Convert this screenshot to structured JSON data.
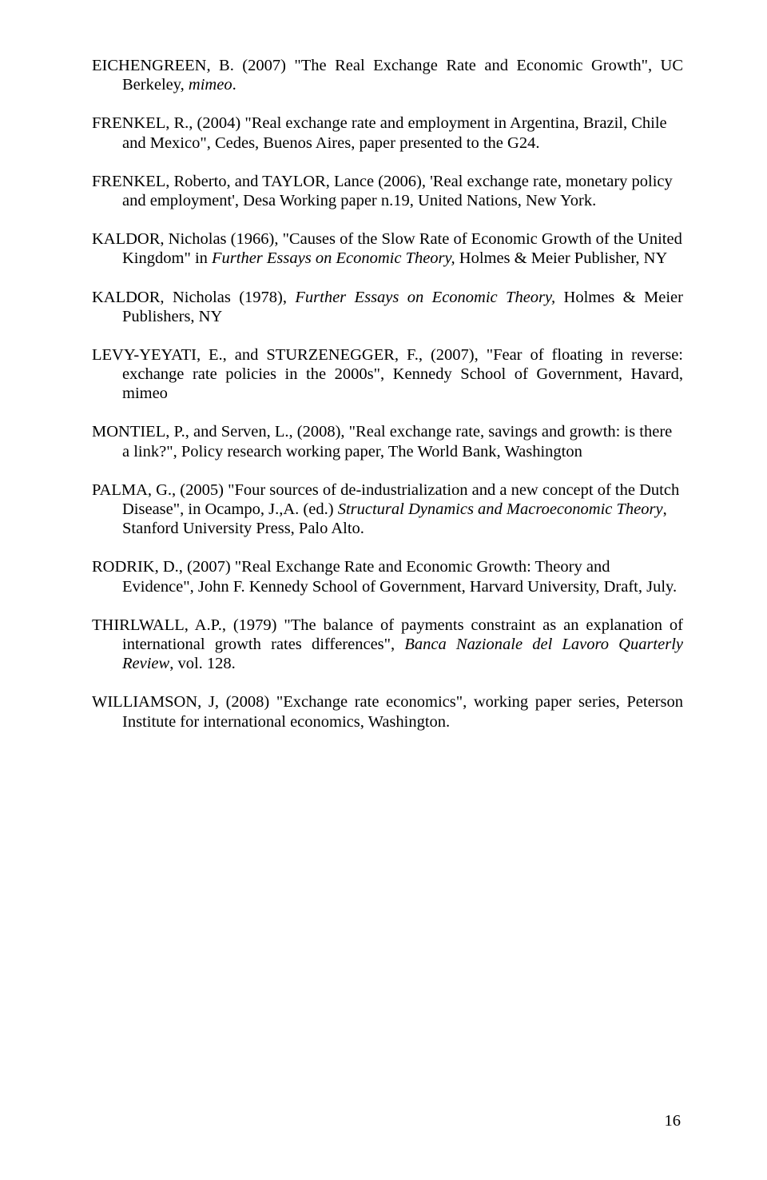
{
  "references": [
    {
      "parts": [
        {
          "text": "EICHENGREEN, B. (2007) \"The Real Exchange Rate and Economic Growth\", UC Berkeley, "
        },
        {
          "text": "mimeo",
          "italic": true
        },
        {
          "text": "."
        }
      ],
      "justify": true
    },
    {
      "parts": [
        {
          "text": "FRENKEL, R., (2004) \"Real exchange rate and employment in Argentina, Brazil, Chile and Mexico\", Cedes, Buenos Aires, paper presented to the G24."
        }
      ],
      "justify": false
    },
    {
      "parts": [
        {
          "text": "FRENKEL, Roberto, and TAYLOR, Lance (2006), 'Real exchange rate, monetary policy and employment', Desa Working paper n.19, United Nations, New York."
        }
      ],
      "justify": false
    },
    {
      "parts": [
        {
          "text": "KALDOR, Nicholas (1966), \"Causes of the Slow Rate of Economic Growth of the United Kingdom\" in "
        },
        {
          "text": "Further Essays on Economic Theory,",
          "italic": true
        },
        {
          "text": " Holmes & Meier Publisher, NY"
        }
      ],
      "justify": false
    },
    {
      "parts": [
        {
          "text": "KALDOR, Nicholas (1978), "
        },
        {
          "text": "Further Essays on Economic Theory,",
          "italic": true
        },
        {
          "text": " Holmes & Meier Publishers, NY"
        }
      ],
      "justify": true
    },
    {
      "parts": [
        {
          "text": "LEVY-YEYATI, E., and STURZENEGGER, F., (2007), \"Fear of floating in reverse: exchange rate policies in the 2000s\", Kennedy School of Government, Havard, mimeo"
        }
      ],
      "justify": true
    },
    {
      "parts": [
        {
          "text": "MONTIEL, P., and Serven, L., (2008), \"Real exchange rate, savings and growth: is there a link?\", Policy research working paper, The World Bank, Washington"
        }
      ],
      "justify": false
    },
    {
      "parts": [
        {
          "text": "PALMA, G., (2005) \"Four sources of de-industrialization and a new concept of the Dutch Disease\", in Ocampo, J.,A. (ed.) "
        },
        {
          "text": "Structural Dynamics and Macroeconomic Theory",
          "italic": true
        },
        {
          "text": ", Stanford University Press, Palo Alto."
        }
      ],
      "justify": false
    },
    {
      "parts": [
        {
          "text": "RODRIK, D., (2007) \"Real Exchange Rate and Economic Growth: Theory and Evidence\", John F. Kennedy School of Government, Harvard University, Draft, July."
        }
      ],
      "justify": false
    },
    {
      "parts": [
        {
          "text": "THIRLWALL, A.P., (1979) \"The balance of payments constraint as an explanation of international growth rates differences\", "
        },
        {
          "text": "Banca Nazionale del Lavoro Quarterly Review",
          "italic": true
        },
        {
          "text": ", vol. 128."
        }
      ],
      "justify": true
    },
    {
      "parts": [
        {
          "text": "WILLIAMSON, J, (2008) \"Exchange rate economics\", working paper series, Peterson Institute for international economics, Washington."
        }
      ],
      "justify": true
    }
  ],
  "page_number": "16"
}
